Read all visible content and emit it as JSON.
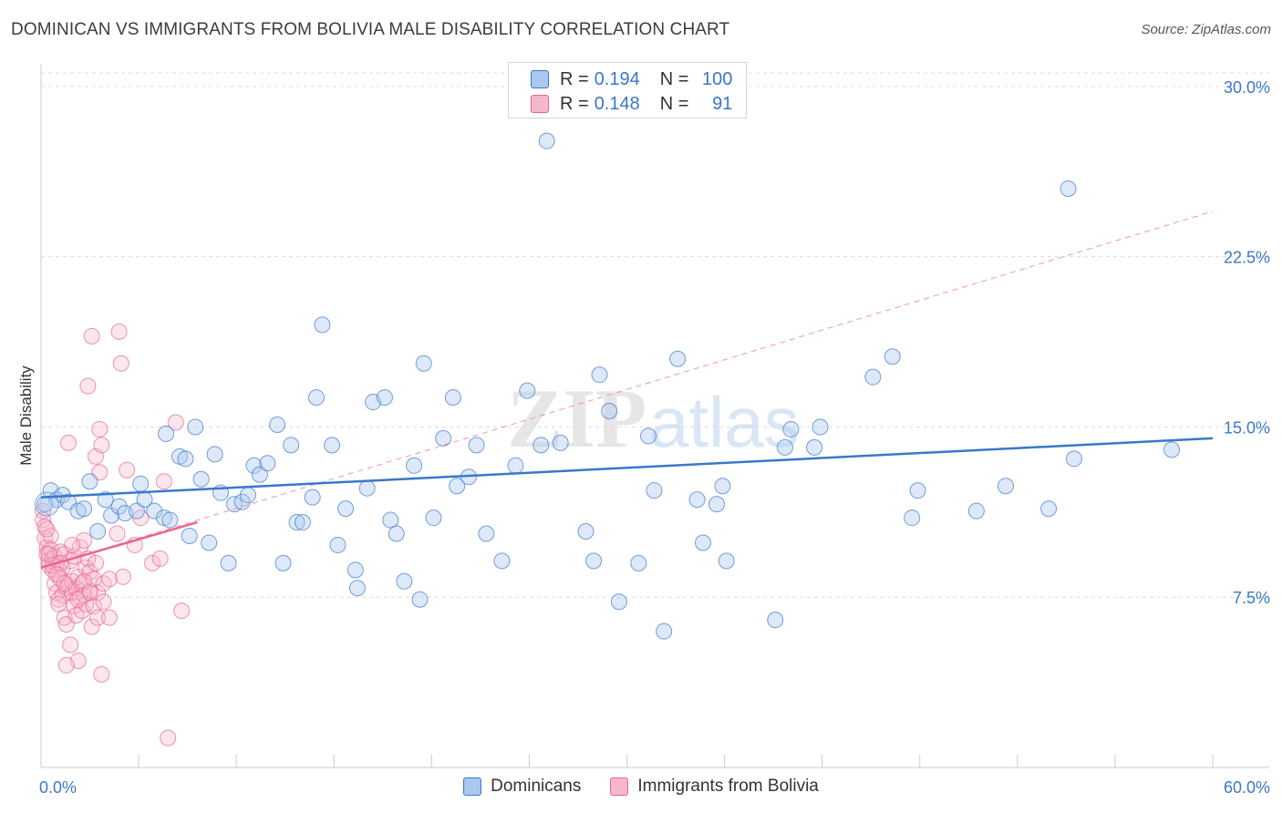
{
  "title": "DOMINICAN VS IMMIGRANTS FROM BOLIVIA MALE DISABILITY CORRELATION CHART",
  "source": "Source: ZipAtlas.com",
  "watermark": {
    "zip": "ZIP",
    "atlas": "atlas"
  },
  "legend": {
    "rows": [
      {
        "r_label": "R =",
        "r_value": "0.194",
        "n_label": "N =",
        "n_value": "100"
      },
      {
        "r_label": "R =",
        "r_value": "0.148",
        "n_label": "N =",
        "n_value": "91"
      }
    ]
  },
  "colors": {
    "blue": "#3a78c9",
    "blue_fill": "#a9c8ef",
    "pink": "#e8668f",
    "pink_fill": "#f6b7cb",
    "grid": "#dcdcdc",
    "axis_label": "#3a78c9"
  },
  "chart_data": {
    "type": "scatter",
    "title": "DOMINICAN VS IMMIGRANTS FROM BOLIVIA MALE DISABILITY CORRELATION CHART",
    "xlabel": "",
    "ylabel": "Male Disability",
    "xlim": [
      0,
      60
    ],
    "ylim": [
      0,
      31
    ],
    "x_tick_labels": [
      "0.0%",
      "60.0%"
    ],
    "y_ticks": [
      7.5,
      15.0,
      22.5,
      30.0
    ],
    "y_tick_labels": [
      "7.5%",
      "15.0%",
      "22.5%",
      "30.0%"
    ],
    "grid": true,
    "legend_position": "bottom",
    "series": [
      {
        "name": "Dominicans",
        "color": "#3a78c9",
        "trend": {
          "x0": 0,
          "y0": 11.9,
          "x1": 60,
          "y1": 14.5,
          "style": "solid"
        },
        "points": [
          [
            0.5,
            12.2
          ],
          [
            0.8,
            11.8
          ],
          [
            1.1,
            12.0
          ],
          [
            1.4,
            11.7
          ],
          [
            1.9,
            11.3
          ],
          [
            2.2,
            11.4
          ],
          [
            2.5,
            12.6
          ],
          [
            2.9,
            10.4
          ],
          [
            3.3,
            11.8
          ],
          [
            3.6,
            11.1
          ],
          [
            4.0,
            11.5
          ],
          [
            4.3,
            11.2
          ],
          [
            4.9,
            11.3
          ],
          [
            5.1,
            12.5
          ],
          [
            5.3,
            11.8
          ],
          [
            5.8,
            11.3
          ],
          [
            6.3,
            11.0
          ],
          [
            6.4,
            14.7
          ],
          [
            6.6,
            10.9
          ],
          [
            7.1,
            13.7
          ],
          [
            7.4,
            13.6
          ],
          [
            7.6,
            10.2
          ],
          [
            7.9,
            15.0
          ],
          [
            8.2,
            12.7
          ],
          [
            8.6,
            9.9
          ],
          [
            8.9,
            13.8
          ],
          [
            9.2,
            12.1
          ],
          [
            9.6,
            9.0
          ],
          [
            9.9,
            11.6
          ],
          [
            10.3,
            11.7
          ],
          [
            10.6,
            12.0
          ],
          [
            10.9,
            13.3
          ],
          [
            11.2,
            12.9
          ],
          [
            11.6,
            13.4
          ],
          [
            12.1,
            15.1
          ],
          [
            12.4,
            9.0
          ],
          [
            12.8,
            14.2
          ],
          [
            13.1,
            10.8
          ],
          [
            13.4,
            10.8
          ],
          [
            13.9,
            11.9
          ],
          [
            14.1,
            16.3
          ],
          [
            14.4,
            19.5
          ],
          [
            14.9,
            14.2
          ],
          [
            15.2,
            9.8
          ],
          [
            15.6,
            11.4
          ],
          [
            16.1,
            8.7
          ],
          [
            16.2,
            7.9
          ],
          [
            16.7,
            12.3
          ],
          [
            17.0,
            16.1
          ],
          [
            17.6,
            16.3
          ],
          [
            17.9,
            10.9
          ],
          [
            18.2,
            10.3
          ],
          [
            18.6,
            8.2
          ],
          [
            19.1,
            13.3
          ],
          [
            19.4,
            7.4
          ],
          [
            19.6,
            17.8
          ],
          [
            20.1,
            11.0
          ],
          [
            20.6,
            14.5
          ],
          [
            21.1,
            16.3
          ],
          [
            21.3,
            12.4
          ],
          [
            21.9,
            12.8
          ],
          [
            22.3,
            14.2
          ],
          [
            22.8,
            10.3
          ],
          [
            23.6,
            9.1
          ],
          [
            24.3,
            13.3
          ],
          [
            24.9,
            16.6
          ],
          [
            25.6,
            14.2
          ],
          [
            25.9,
            27.6
          ],
          [
            26.6,
            14.3
          ],
          [
            27.9,
            10.4
          ],
          [
            28.3,
            9.1
          ],
          [
            28.6,
            17.3
          ],
          [
            29.1,
            15.7
          ],
          [
            29.6,
            7.3
          ],
          [
            30.6,
            9.0
          ],
          [
            31.1,
            14.6
          ],
          [
            31.4,
            12.2
          ],
          [
            31.9,
            6.0
          ],
          [
            32.6,
            18.0
          ],
          [
            33.6,
            11.8
          ],
          [
            33.9,
            9.9
          ],
          [
            34.6,
            11.6
          ],
          [
            34.9,
            12.4
          ],
          [
            35.1,
            9.1
          ],
          [
            37.6,
            6.5
          ],
          [
            38.1,
            14.1
          ],
          [
            38.4,
            14.9
          ],
          [
            39.6,
            14.1
          ],
          [
            39.9,
            15.0
          ],
          [
            42.6,
            17.2
          ],
          [
            43.6,
            18.1
          ],
          [
            44.6,
            11.0
          ],
          [
            44.9,
            12.2
          ],
          [
            47.9,
            11.3
          ],
          [
            49.4,
            12.4
          ],
          [
            51.6,
            11.4
          ],
          [
            52.6,
            25.5
          ],
          [
            52.9,
            13.6
          ],
          [
            57.9,
            14.0
          ],
          [
            0.2,
            11.6
          ]
        ]
      },
      {
        "name": "Immigrants from Bolivia",
        "color": "#e8668f",
        "trend": {
          "x0": 0,
          "y0": 8.8,
          "x1": 8,
          "y1": 10.8,
          "style": "solid",
          "extend_to": {
            "x": 60,
            "y": 24.5,
            "style": "dashed"
          }
        },
        "points": [
          [
            0.1,
            11.3
          ],
          [
            0.1,
            10.9
          ],
          [
            0.2,
            10.6
          ],
          [
            0.2,
            10.1
          ],
          [
            0.3,
            9.7
          ],
          [
            0.3,
            9.4
          ],
          [
            0.4,
            9.1
          ],
          [
            0.4,
            8.9
          ],
          [
            0.5,
            10.2
          ],
          [
            0.5,
            9.6
          ],
          [
            0.6,
            9.2
          ],
          [
            0.6,
            8.7
          ],
          [
            0.7,
            9.3
          ],
          [
            0.7,
            8.1
          ],
          [
            0.8,
            7.7
          ],
          [
            0.8,
            9.0
          ],
          [
            0.9,
            7.4
          ],
          [
            0.9,
            8.5
          ],
          [
            1.0,
            9.5
          ],
          [
            1.0,
            8.3
          ],
          [
            1.1,
            7.6
          ],
          [
            1.1,
            8.8
          ],
          [
            1.2,
            6.6
          ],
          [
            1.2,
            9.4
          ],
          [
            1.3,
            7.9
          ],
          [
            1.3,
            6.3
          ],
          [
            1.4,
            14.3
          ],
          [
            1.4,
            8.0
          ],
          [
            1.5,
            5.4
          ],
          [
            1.5,
            9.1
          ],
          [
            1.6,
            7.7
          ],
          [
            1.6,
            8.2
          ],
          [
            1.7,
            7.1
          ],
          [
            1.7,
            9.3
          ],
          [
            1.8,
            7.9
          ],
          [
            1.8,
            6.7
          ],
          [
            1.9,
            4.7
          ],
          [
            1.9,
            8.4
          ],
          [
            2.0,
            7.5
          ],
          [
            2.0,
            9.7
          ],
          [
            2.1,
            6.9
          ],
          [
            2.1,
            8.1
          ],
          [
            2.2,
            10.0
          ],
          [
            2.2,
            7.6
          ],
          [
            2.3,
            8.8
          ],
          [
            2.3,
            7.2
          ],
          [
            2.4,
            16.8
          ],
          [
            2.4,
            9.2
          ],
          [
            2.5,
            8.6
          ],
          [
            2.5,
            7.8
          ],
          [
            2.6,
            19.0
          ],
          [
            2.6,
            6.2
          ],
          [
            2.7,
            7.1
          ],
          [
            2.7,
            8.3
          ],
          [
            2.8,
            13.7
          ],
          [
            2.8,
            9.0
          ],
          [
            2.9,
            7.7
          ],
          [
            2.9,
            6.6
          ],
          [
            3.0,
            14.9
          ],
          [
            3.0,
            13.0
          ],
          [
            3.1,
            4.1
          ],
          [
            3.1,
            14.2
          ],
          [
            3.2,
            8.1
          ],
          [
            3.2,
            7.3
          ],
          [
            3.5,
            6.6
          ],
          [
            3.5,
            8.3
          ],
          [
            3.9,
            10.3
          ],
          [
            4.0,
            19.2
          ],
          [
            4.1,
            17.8
          ],
          [
            4.2,
            8.4
          ],
          [
            4.4,
            13.1
          ],
          [
            4.8,
            9.8
          ],
          [
            5.1,
            11.0
          ],
          [
            5.7,
            9.0
          ],
          [
            6.1,
            9.2
          ],
          [
            6.3,
            12.6
          ],
          [
            6.5,
            1.3
          ],
          [
            6.9,
            15.2
          ],
          [
            7.2,
            6.9
          ],
          [
            1.3,
            4.5
          ],
          [
            0.9,
            7.2
          ],
          [
            1.6,
            9.8
          ],
          [
            2.2,
            8.2
          ],
          [
            0.6,
            8.9
          ],
          [
            1.0,
            9.0
          ],
          [
            0.4,
            9.4
          ],
          [
            1.9,
            7.4
          ],
          [
            2.5,
            7.7
          ],
          [
            0.8,
            8.5
          ],
          [
            1.2,
            8.1
          ],
          [
            0.3,
            10.5
          ]
        ]
      }
    ]
  },
  "bottom_legend": [
    {
      "label": "Dominicans"
    },
    {
      "label": "Immigrants from Bolivia"
    }
  ]
}
